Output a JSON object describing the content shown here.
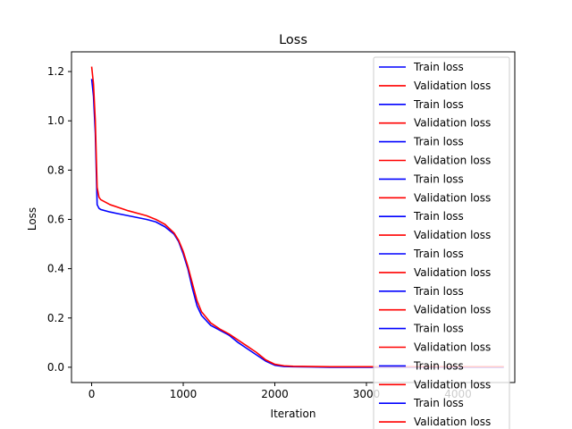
{
  "chart_data": {
    "type": "line",
    "title": "Loss",
    "xlabel": "Iteration",
    "ylabel": "Loss",
    "xlim": [
      -220,
      4620
    ],
    "ylim": [
      -0.062,
      1.28
    ],
    "xticks": [
      0,
      1000,
      2000,
      3000,
      4000
    ],
    "xtick_labels": [
      "0",
      "1000",
      "2000",
      "3000",
      "4000"
    ],
    "yticks": [
      0.0,
      0.2,
      0.4,
      0.6,
      0.8,
      1.0,
      1.2
    ],
    "ytick_labels": [
      "0.0",
      "0.2",
      "0.4",
      "0.6",
      "0.8",
      "1.0",
      "1.2"
    ],
    "grid": false,
    "legend_position": "top-right",
    "legend": [
      {
        "label": "Train loss",
        "color": "#0000ff"
      },
      {
        "label": "Validation loss",
        "color": "#ff0000"
      },
      {
        "label": "Train loss",
        "color": "#0000ff"
      },
      {
        "label": "Validation loss",
        "color": "#ff0000"
      },
      {
        "label": "Train loss",
        "color": "#0000ff"
      },
      {
        "label": "Validation loss",
        "color": "#ff0000"
      },
      {
        "label": "Train loss",
        "color": "#0000ff"
      },
      {
        "label": "Validation loss",
        "color": "#ff0000"
      },
      {
        "label": "Train loss",
        "color": "#0000ff"
      },
      {
        "label": "Validation loss",
        "color": "#ff0000"
      },
      {
        "label": "Train loss",
        "color": "#0000ff"
      },
      {
        "label": "Validation loss",
        "color": "#ff0000"
      },
      {
        "label": "Train loss",
        "color": "#0000ff"
      },
      {
        "label": "Validation loss",
        "color": "#ff0000"
      },
      {
        "label": "Train loss",
        "color": "#0000ff"
      },
      {
        "label": "Validation loss",
        "color": "#ff0000"
      },
      {
        "label": "Train loss",
        "color": "#0000ff"
      },
      {
        "label": "Validation loss",
        "color": "#ff0000"
      },
      {
        "label": "Train loss",
        "color": "#0000ff"
      },
      {
        "label": "Validation loss",
        "color": "#ff0000"
      }
    ],
    "series": [
      {
        "name": "Train loss",
        "color": "#0000ff",
        "x": [
          0,
          20,
          40,
          60,
          80,
          100,
          200,
          400,
          600,
          700,
          800,
          900,
          950,
          1000,
          1050,
          1100,
          1150,
          1200,
          1300,
          1400,
          1500,
          1600,
          1700,
          1800,
          1900,
          2000,
          2100,
          2200,
          2400,
          2600,
          3000,
          3500,
          4000,
          4500
        ],
        "y": [
          1.17,
          1.1,
          0.95,
          0.66,
          0.645,
          0.64,
          0.63,
          0.615,
          0.6,
          0.59,
          0.57,
          0.54,
          0.51,
          0.46,
          0.4,
          0.32,
          0.25,
          0.21,
          0.17,
          0.15,
          0.13,
          0.1,
          0.075,
          0.05,
          0.025,
          0.008,
          0.003,
          0.002,
          0.001,
          0.0,
          0.0,
          0.0,
          0.0,
          0.0
        ]
      },
      {
        "name": "Validation loss",
        "color": "#ff0000",
        "x": [
          0,
          20,
          40,
          60,
          80,
          100,
          200,
          400,
          600,
          700,
          800,
          900,
          950,
          1000,
          1050,
          1100,
          1150,
          1200,
          1300,
          1400,
          1500,
          1600,
          1700,
          1800,
          1900,
          2000,
          2100,
          2200,
          2400,
          2600,
          3000,
          3500,
          4000,
          4500
        ],
        "y": [
          1.22,
          1.15,
          1.0,
          0.73,
          0.69,
          0.68,
          0.66,
          0.635,
          0.615,
          0.6,
          0.58,
          0.545,
          0.515,
          0.47,
          0.41,
          0.34,
          0.27,
          0.225,
          0.18,
          0.155,
          0.135,
          0.11,
          0.085,
          0.06,
          0.03,
          0.012,
          0.006,
          0.004,
          0.003,
          0.002,
          0.002,
          0.002,
          0.002,
          0.002
        ]
      }
    ]
  }
}
